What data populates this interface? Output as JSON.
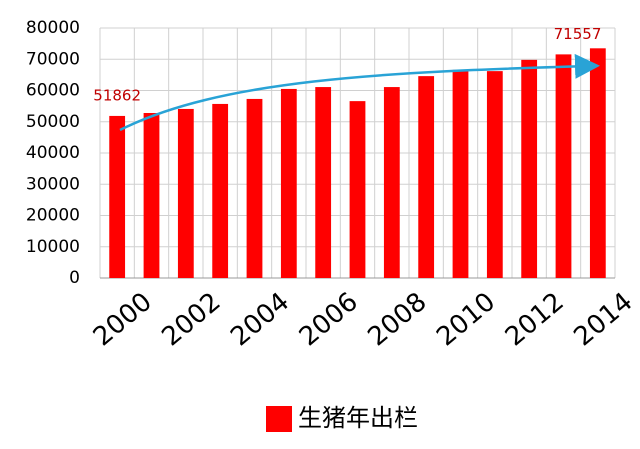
{
  "chart_data": {
    "type": "bar",
    "categories": [
      "2000",
      null,
      "2002",
      null,
      "2004",
      null,
      "2006",
      null,
      "2008",
      null,
      "2010",
      null,
      "2012",
      null,
      "2014"
    ],
    "series": [
      {
        "name": "生猪年出栏",
        "color": "#ff0000",
        "values": [
          51862,
          52800,
          54100,
          55700,
          57300,
          60500,
          61100,
          56600,
          61100,
          64600,
          66600,
          66200,
          69800,
          71557,
          73500
        ],
        "value_labels": [
          "51862",
          null,
          null,
          null,
          null,
          null,
          null,
          null,
          null,
          null,
          null,
          null,
          null,
          "71557",
          null
        ]
      }
    ],
    "ylim": [
      0,
      80000
    ],
    "yticks": [
      0,
      10000,
      20000,
      30000,
      40000,
      50000,
      60000,
      70000,
      80000
    ],
    "grid": true,
    "legend": "bottom"
  }
}
